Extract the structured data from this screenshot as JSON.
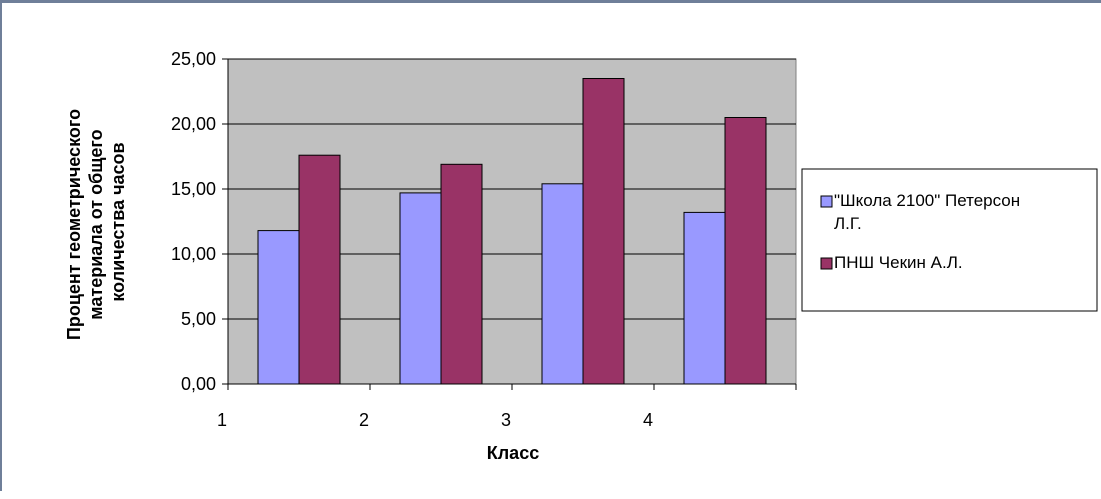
{
  "chart_data": {
    "type": "bar",
    "categories": [
      "1",
      "2",
      "3",
      "4"
    ],
    "series": [
      {
        "name": "\"Школа 2100\" Петерсон Л.Г.",
        "values": [
          11.8,
          14.7,
          15.4,
          13.2
        ]
      },
      {
        "name": "ПНШ Чекин А.Л.",
        "values": [
          17.6,
          16.9,
          23.5,
          20.5
        ]
      }
    ],
    "ylim": [
      0,
      25
    ],
    "yticks": [
      "0,00",
      "5,00",
      "10,00",
      "15,00",
      "20,00",
      "25,00"
    ],
    "ylabel": [
      "Процент геометрического",
      "материала от общего",
      "количества часов"
    ],
    "xlabel": "Класс",
    "grid": true,
    "legend_position": "right",
    "colors": {
      "series": [
        "#9999ff",
        "#993366"
      ],
      "plot_background": "#c0c0c0",
      "gridline": "#000000",
      "frame": "#6f7f99"
    }
  }
}
